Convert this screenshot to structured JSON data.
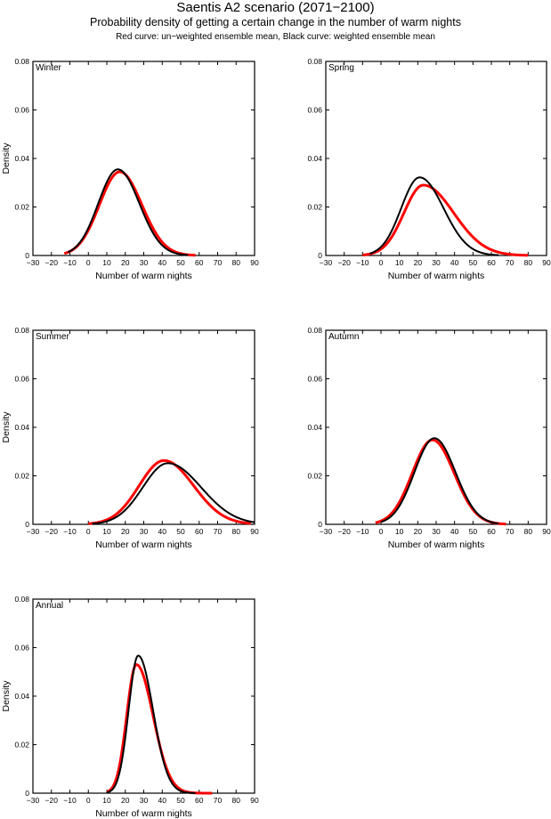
{
  "header": {
    "title": "Saentis A2 scenario (2071−2100)",
    "subtitle": "Probability density of getting a certain change in the number of warm nights",
    "legend_note": "Red curve: un−weighted ensemble mean, Black curve: weighted ensemble mean"
  },
  "colors": {
    "unweighted": "#ff0000",
    "weighted": "#000000"
  },
  "chart_data": [
    {
      "type": "line",
      "title": "Winter",
      "xlabel": "Number of warm nights",
      "ylabel": "Density",
      "xlim": [
        -30,
        90
      ],
      "ylim": [
        0,
        0.08
      ],
      "xticks": [
        "−30",
        "−20",
        "−10",
        "0",
        "10",
        "20",
        "30",
        "40",
        "50",
        "60",
        "70",
        "80",
        "90"
      ],
      "yticks": [
        "0",
        "0.02",
        "0.04",
        "0.06",
        "0.08"
      ],
      "show_ylabel": true,
      "series": [
        {
          "name": "un-weighted ensemble mean",
          "color": "red",
          "mode": 17,
          "peak": 0.0345,
          "sd_left": 11.0,
          "sd_right": 12.0,
          "x_min": -13,
          "x_max": 58
        },
        {
          "name": "weighted ensemble mean",
          "color": "black",
          "mode": 16,
          "peak": 0.0355,
          "sd_left": 10.6,
          "sd_right": 11.6,
          "x_min": -11,
          "x_max": 54
        }
      ]
    },
    {
      "type": "line",
      "title": "Spring",
      "xlabel": "Number of warm nights",
      "ylabel": "",
      "xlim": [
        -30,
        90
      ],
      "ylim": [
        0,
        0.08
      ],
      "xticks": [
        "−30",
        "−20",
        "−10",
        "0",
        "10",
        "20",
        "30",
        "40",
        "50",
        "60",
        "70",
        "80",
        "90"
      ],
      "yticks": [
        "0",
        "0.02",
        "0.04",
        "0.06",
        "0.08"
      ],
      "show_ylabel": false,
      "series": [
        {
          "name": "un-weighted ensemble mean",
          "color": "red",
          "mode": 23,
          "peak": 0.029,
          "sd_left": 10.5,
          "sd_right": 16.5,
          "x_min": -10,
          "x_max": 80
        },
        {
          "name": "weighted ensemble mean",
          "color": "black",
          "mode": 21,
          "peak": 0.0322,
          "sd_left": 10.0,
          "sd_right": 13.0,
          "x_min": -6,
          "x_max": 64
        }
      ]
    },
    {
      "type": "line",
      "title": "Summer",
      "xlabel": "Number of warm nights",
      "ylabel": "Density",
      "xlim": [
        -30,
        90
      ],
      "ylim": [
        0,
        0.08
      ],
      "xticks": [
        "−30",
        "−20",
        "−10",
        "0",
        "10",
        "20",
        "30",
        "40",
        "50",
        "60",
        "70",
        "80",
        "90"
      ],
      "yticks": [
        "0",
        "0.02",
        "0.04",
        "0.06",
        "0.08"
      ],
      "show_ylabel": true,
      "series": [
        {
          "name": "un-weighted ensemble mean",
          "color": "red",
          "mode": 41,
          "peak": 0.0263,
          "sd_left": 13.5,
          "sd_right": 16.0,
          "x_min": 0,
          "x_max": 88
        },
        {
          "name": "weighted ensemble mean",
          "color": "black",
          "mode": 43,
          "peak": 0.0252,
          "sd_left": 13.5,
          "sd_right": 18.0,
          "x_min": 2,
          "x_max": 90
        }
      ]
    },
    {
      "type": "line",
      "title": "Autumn",
      "xlabel": "Number of warm nights",
      "ylabel": "",
      "xlim": [
        -30,
        90
      ],
      "ylim": [
        0,
        0.08
      ],
      "xticks": [
        "−30",
        "−20",
        "−10",
        "0",
        "10",
        "20",
        "30",
        "40",
        "50",
        "60",
        "70",
        "80",
        "90"
      ],
      "yticks": [
        "0",
        "0.02",
        "0.04",
        "0.06",
        "0.08"
      ],
      "show_ylabel": false,
      "series": [
        {
          "name": "un-weighted ensemble mean",
          "color": "red",
          "mode": 28,
          "peak": 0.0348,
          "sd_left": 11.0,
          "sd_right": 11.8,
          "x_min": -3,
          "x_max": 68
        },
        {
          "name": "weighted ensemble mean",
          "color": "black",
          "mode": 29,
          "peak": 0.0355,
          "sd_left": 10.8,
          "sd_right": 11.5,
          "x_min": 0,
          "x_max": 64
        }
      ]
    },
    {
      "type": "line",
      "title": "Annual",
      "xlabel": "Number of warm nights",
      "ylabel": "Density",
      "xlim": [
        -30,
        90
      ],
      "ylim": [
        0,
        0.08
      ],
      "xticks": [
        "−30",
        "−20",
        "−10",
        "0",
        "10",
        "20",
        "30",
        "40",
        "50",
        "60",
        "70",
        "80",
        "90"
      ],
      "yticks": [
        "0",
        "0.02",
        "0.04",
        "0.06",
        "0.08"
      ],
      "show_ylabel": true,
      "series": [
        {
          "name": "un-weighted ensemble mean",
          "color": "red",
          "mode": 26,
          "peak": 0.053,
          "sd_left": 5.2,
          "sd_right": 9.0,
          "x_min": 10,
          "x_max": 67
        },
        {
          "name": "weighted ensemble mean",
          "color": "black",
          "mode": 27,
          "peak": 0.0567,
          "sd_left": 5.2,
          "sd_right": 8.0,
          "x_min": 10,
          "x_max": 58
        }
      ]
    }
  ]
}
